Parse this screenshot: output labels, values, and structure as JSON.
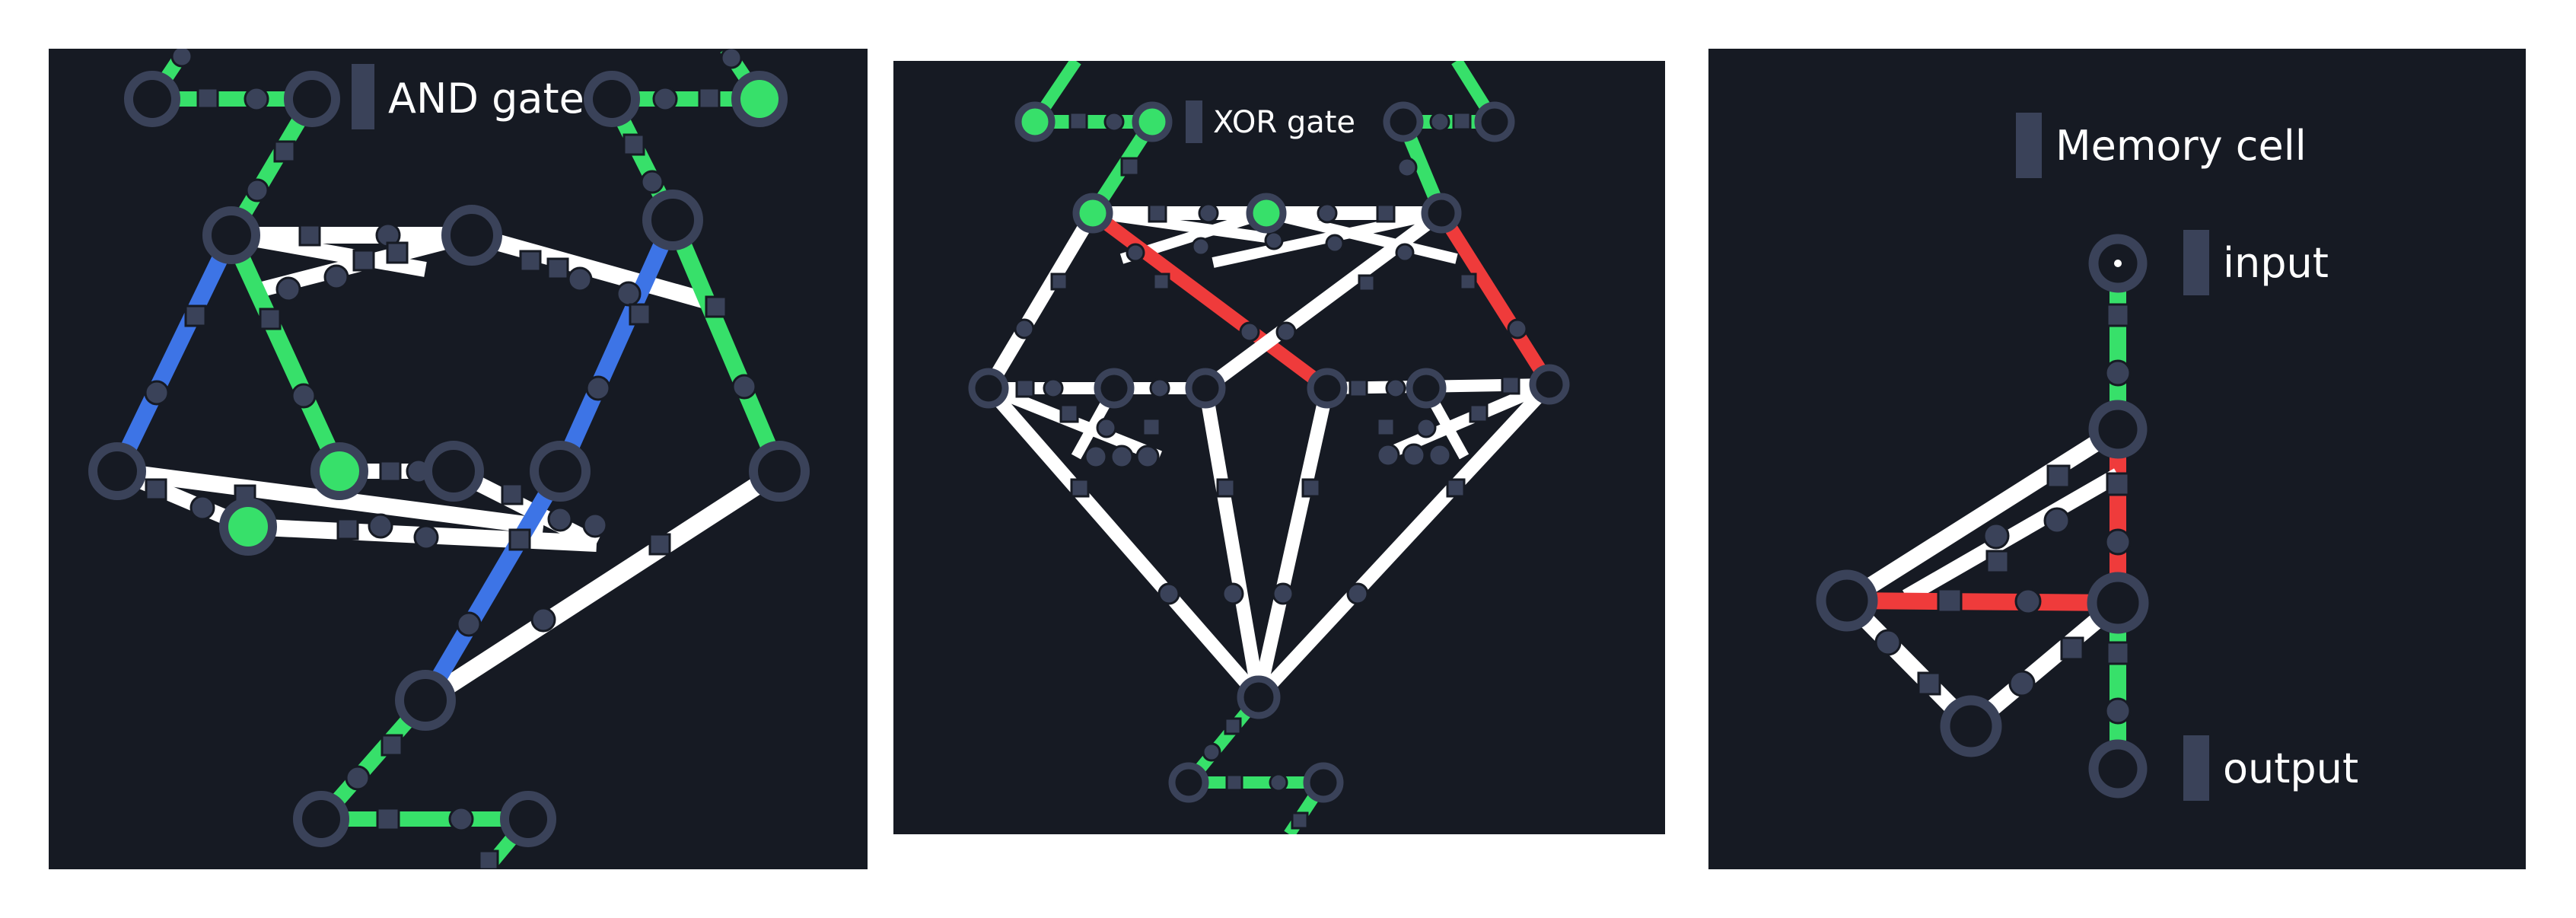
{
  "panels": {
    "and": {
      "title": "AND gate"
    },
    "xor": {
      "title": "XOR gate"
    },
    "memory": {
      "title": "Memory cell",
      "input_label": "input",
      "output_label": "output"
    }
  },
  "colors": {
    "background": "#161a23",
    "node": "#3a4259",
    "wire_white": "#ffffff",
    "wire_green": "#37e06a",
    "wire_blue": "#3d74e6",
    "wire_red": "#ef3b3b"
  }
}
